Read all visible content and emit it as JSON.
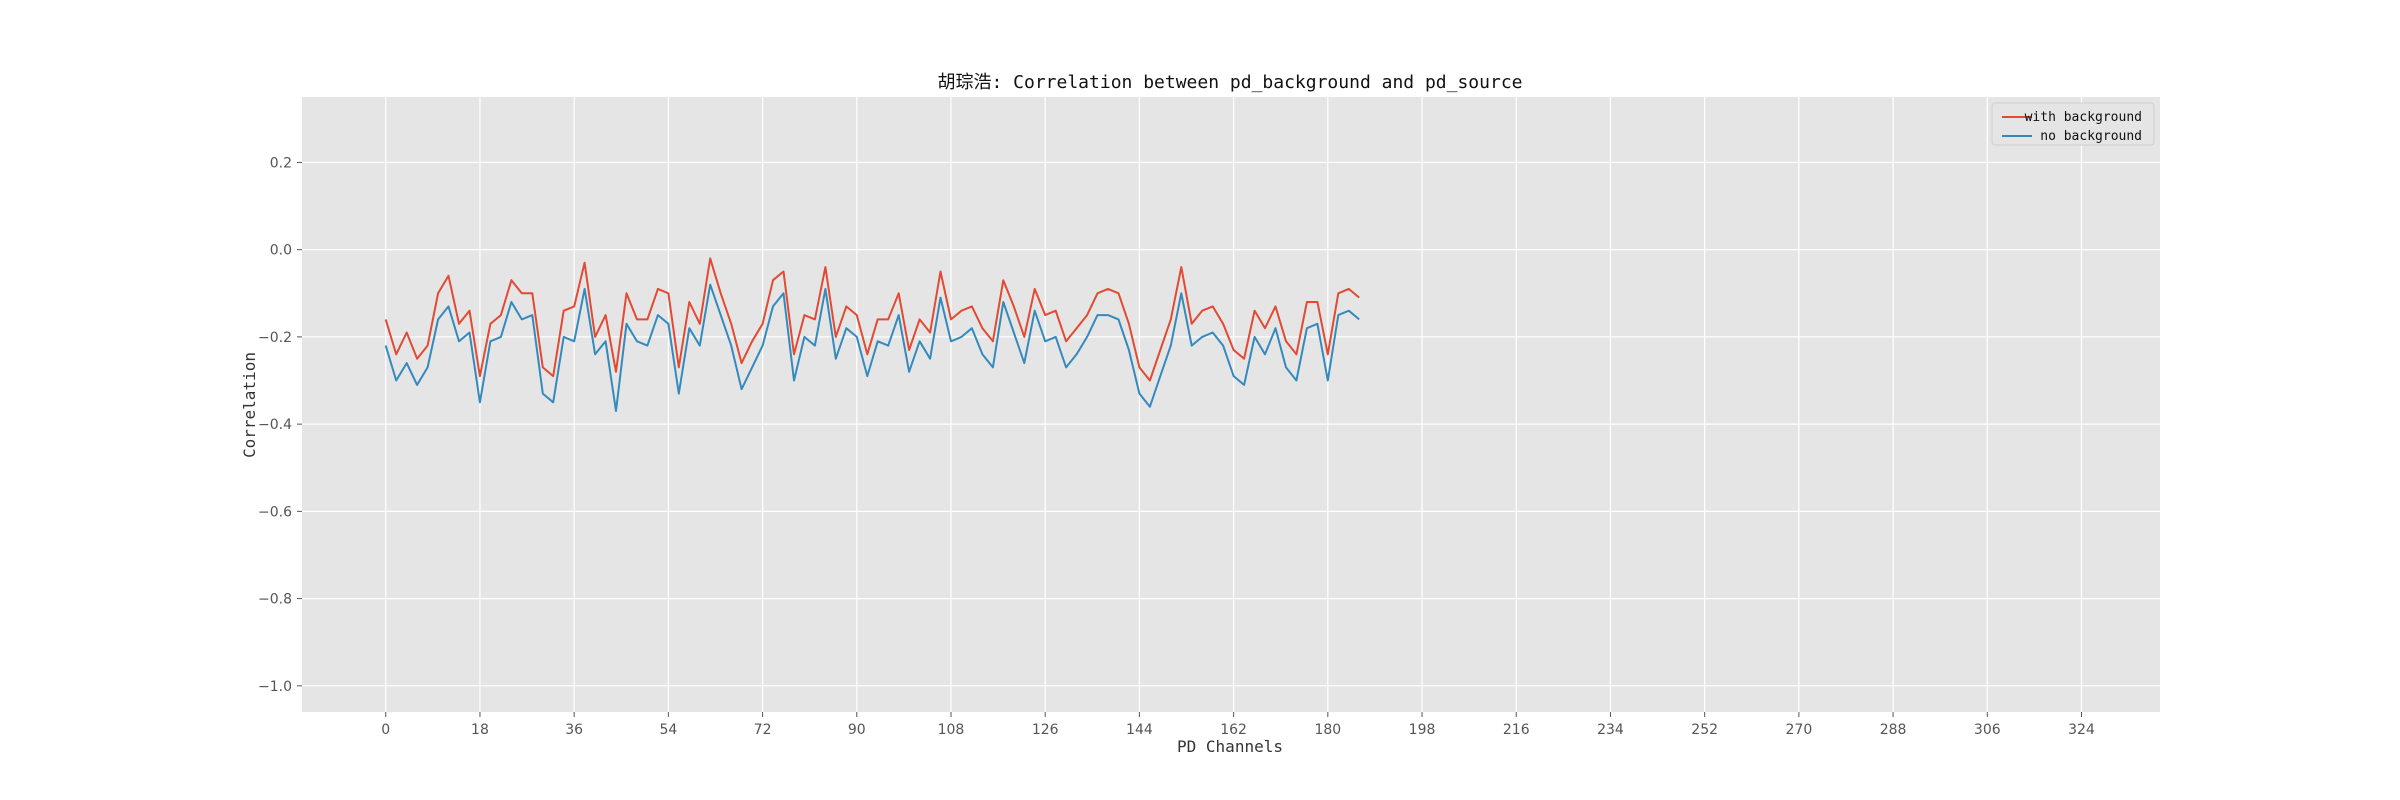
{
  "chart_data": {
    "type": "line",
    "title": "胡琮浩: Correlation between pd_background and pd_source",
    "xlabel": "PD Channels",
    "ylabel": "Correlation",
    "xlim": [
      -16,
      339
    ],
    "ylim": [
      -1.06,
      0.35
    ],
    "xticks": [
      0,
      18,
      36,
      54,
      72,
      90,
      108,
      126,
      144,
      162,
      180,
      198,
      216,
      234,
      252,
      270,
      288,
      306,
      324
    ],
    "yticks": [
      -1.0,
      -0.8,
      -0.6,
      -0.4,
      -0.2,
      0.0,
      0.2
    ],
    "ytick_labels": [
      "−1.0",
      "−0.8",
      "−0.6",
      "−0.4",
      "−0.2",
      "0.0",
      "0.2"
    ],
    "grid": true,
    "legend_position": "top-right",
    "colors": {
      "plot_bg": "#e5e5e5",
      "grid": "#ffffff",
      "with_background": "#e24a33",
      "no_background": "#348abd"
    },
    "series": [
      {
        "name": "with background",
        "color": "#e24a33",
        "points": [
          [
            0,
            -0.16
          ],
          [
            2,
            -0.24
          ],
          [
            4,
            -0.19
          ],
          [
            6,
            -0.25
          ],
          [
            8,
            -0.22
          ],
          [
            10,
            -0.1
          ],
          [
            12,
            -0.06
          ],
          [
            14,
            -0.17
          ],
          [
            16,
            -0.14
          ],
          [
            18,
            -0.29
          ],
          [
            20,
            -0.17
          ],
          [
            22,
            -0.15
          ],
          [
            24,
            -0.07
          ],
          [
            26,
            -0.1
          ],
          [
            28,
            -0.1
          ],
          [
            30,
            -0.27
          ],
          [
            32,
            -0.29
          ],
          [
            34,
            -0.14
          ],
          [
            36,
            -0.13
          ],
          [
            38,
            -0.03
          ],
          [
            40,
            -0.2
          ],
          [
            42,
            -0.15
          ],
          [
            44,
            -0.28
          ],
          [
            46,
            -0.1
          ],
          [
            48,
            -0.16
          ],
          [
            50,
            -0.16
          ],
          [
            52,
            -0.09
          ],
          [
            54,
            -0.1
          ],
          [
            56,
            -0.27
          ],
          [
            58,
            -0.12
          ],
          [
            60,
            -0.17
          ],
          [
            62,
            -0.02
          ],
          [
            64,
            -0.1
          ],
          [
            66,
            -0.17
          ],
          [
            68,
            -0.26
          ],
          [
            70,
            -0.21
          ],
          [
            72,
            -0.17
          ],
          [
            74,
            -0.07
          ],
          [
            76,
            -0.05
          ],
          [
            78,
            -0.24
          ],
          [
            80,
            -0.15
          ],
          [
            82,
            -0.16
          ],
          [
            84,
            -0.04
          ],
          [
            86,
            -0.2
          ],
          [
            88,
            -0.13
          ],
          [
            90,
            -0.15
          ],
          [
            92,
            -0.24
          ],
          [
            94,
            -0.16
          ],
          [
            96,
            -0.16
          ],
          [
            98,
            -0.1
          ],
          [
            100,
            -0.23
          ],
          [
            102,
            -0.16
          ],
          [
            104,
            -0.19
          ],
          [
            106,
            -0.05
          ],
          [
            108,
            -0.16
          ],
          [
            110,
            -0.14
          ],
          [
            112,
            -0.13
          ],
          [
            114,
            -0.18
          ],
          [
            116,
            -0.21
          ],
          [
            118,
            -0.07
          ],
          [
            120,
            -0.13
          ],
          [
            122,
            -0.2
          ],
          [
            124,
            -0.09
          ],
          [
            126,
            -0.15
          ],
          [
            128,
            -0.14
          ],
          [
            130,
            -0.21
          ],
          [
            132,
            -0.18
          ],
          [
            134,
            -0.15
          ],
          [
            136,
            -0.1
          ],
          [
            138,
            -0.09
          ],
          [
            140,
            -0.1
          ],
          [
            142,
            -0.17
          ],
          [
            144,
            -0.27
          ],
          [
            146,
            -0.3
          ],
          [
            148,
            -0.23
          ],
          [
            150,
            -0.16
          ],
          [
            152,
            -0.04
          ],
          [
            154,
            -0.17
          ],
          [
            156,
            -0.14
          ],
          [
            158,
            -0.13
          ],
          [
            160,
            -0.17
          ],
          [
            162,
            -0.23
          ],
          [
            164,
            -0.25
          ],
          [
            166,
            -0.14
          ],
          [
            168,
            -0.18
          ],
          [
            170,
            -0.13
          ],
          [
            172,
            -0.21
          ],
          [
            174,
            -0.24
          ],
          [
            176,
            -0.12
          ],
          [
            178,
            -0.12
          ],
          [
            180,
            -0.24
          ],
          [
            182,
            -0.1
          ],
          [
            184,
            -0.09
          ],
          [
            186,
            -0.11
          ]
        ]
      },
      {
        "name": "no background",
        "color": "#348abd",
        "points": [
          [
            0,
            -0.22
          ],
          [
            2,
            -0.3
          ],
          [
            4,
            -0.26
          ],
          [
            6,
            -0.31
          ],
          [
            8,
            -0.27
          ],
          [
            10,
            -0.16
          ],
          [
            12,
            -0.13
          ],
          [
            14,
            -0.21
          ],
          [
            16,
            -0.19
          ],
          [
            18,
            -0.35
          ],
          [
            20,
            -0.21
          ],
          [
            22,
            -0.2
          ],
          [
            24,
            -0.12
          ],
          [
            26,
            -0.16
          ],
          [
            28,
            -0.15
          ],
          [
            30,
            -0.33
          ],
          [
            32,
            -0.35
          ],
          [
            34,
            -0.2
          ],
          [
            36,
            -0.21
          ],
          [
            38,
            -0.09
          ],
          [
            40,
            -0.24
          ],
          [
            42,
            -0.21
          ],
          [
            44,
            -0.37
          ],
          [
            46,
            -0.17
          ],
          [
            48,
            -0.21
          ],
          [
            50,
            -0.22
          ],
          [
            52,
            -0.15
          ],
          [
            54,
            -0.17
          ],
          [
            56,
            -0.33
          ],
          [
            58,
            -0.18
          ],
          [
            60,
            -0.22
          ],
          [
            62,
            -0.08
          ],
          [
            64,
            -0.15
          ],
          [
            66,
            -0.22
          ],
          [
            68,
            -0.32
          ],
          [
            70,
            -0.27
          ],
          [
            72,
            -0.22
          ],
          [
            74,
            -0.13
          ],
          [
            76,
            -0.1
          ],
          [
            78,
            -0.3
          ],
          [
            80,
            -0.2
          ],
          [
            82,
            -0.22
          ],
          [
            84,
            -0.09
          ],
          [
            86,
            -0.25
          ],
          [
            88,
            -0.18
          ],
          [
            90,
            -0.2
          ],
          [
            92,
            -0.29
          ],
          [
            94,
            -0.21
          ],
          [
            96,
            -0.22
          ],
          [
            98,
            -0.15
          ],
          [
            100,
            -0.28
          ],
          [
            102,
            -0.21
          ],
          [
            104,
            -0.25
          ],
          [
            106,
            -0.11
          ],
          [
            108,
            -0.21
          ],
          [
            110,
            -0.2
          ],
          [
            112,
            -0.18
          ],
          [
            114,
            -0.24
          ],
          [
            116,
            -0.27
          ],
          [
            118,
            -0.12
          ],
          [
            120,
            -0.19
          ],
          [
            122,
            -0.26
          ],
          [
            124,
            -0.14
          ],
          [
            126,
            -0.21
          ],
          [
            128,
            -0.2
          ],
          [
            130,
            -0.27
          ],
          [
            132,
            -0.24
          ],
          [
            134,
            -0.2
          ],
          [
            136,
            -0.15
          ],
          [
            138,
            -0.15
          ],
          [
            140,
            -0.16
          ],
          [
            142,
            -0.23
          ],
          [
            144,
            -0.33
          ],
          [
            146,
            -0.36
          ],
          [
            148,
            -0.29
          ],
          [
            150,
            -0.22
          ],
          [
            152,
            -0.1
          ],
          [
            154,
            -0.22
          ],
          [
            156,
            -0.2
          ],
          [
            158,
            -0.19
          ],
          [
            160,
            -0.22
          ],
          [
            162,
            -0.29
          ],
          [
            164,
            -0.31
          ],
          [
            166,
            -0.2
          ],
          [
            168,
            -0.24
          ],
          [
            170,
            -0.18
          ],
          [
            172,
            -0.27
          ],
          [
            174,
            -0.3
          ],
          [
            176,
            -0.18
          ],
          [
            178,
            -0.17
          ],
          [
            180,
            -0.3
          ],
          [
            182,
            -0.15
          ],
          [
            184,
            -0.14
          ],
          [
            186,
            -0.16
          ]
        ]
      }
    ]
  }
}
